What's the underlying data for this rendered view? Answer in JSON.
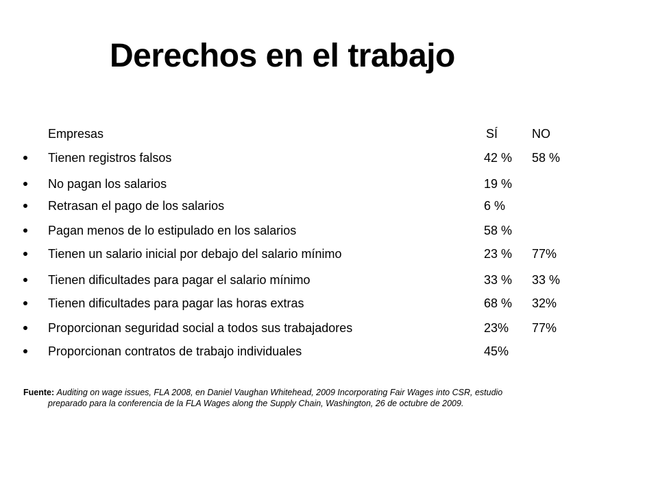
{
  "title": "Derechos en el trabajo",
  "header": {
    "label": "Empresas",
    "si": "SÍ",
    "no": "NO"
  },
  "rows": [
    {
      "label": "Tienen registros falsos",
      "si": "42 %",
      "no": "58 %"
    },
    {
      "label": "No pagan los salarios",
      "si": "19 %",
      "no": ""
    },
    {
      "label": "Retrasan el pago de los salarios",
      "si": "6 %",
      "no": ""
    },
    {
      "label": "Pagan menos de lo estipulado en los salarios",
      "si": "58 %",
      "no": ""
    },
    {
      "label": "Tienen un salario inicial por debajo del salario mínimo",
      "si": "23 %",
      "no": "77%"
    },
    {
      "label": "Tienen dificultades para pagar el salario mínimo",
      "si": "33 %",
      "no": "33 %"
    },
    {
      "label": "Tienen dificultades para pagar las horas extras",
      "si": "68 %",
      "no": "32%"
    },
    {
      "label": "Proporcionan seguridad social a todos sus trabajadores",
      "si": "23%",
      "no": "77%"
    },
    {
      "label": "Proporcionan contratos de trabajo individuales",
      "si": "45%",
      "no": ""
    }
  ],
  "source": {
    "label": "Fuente:",
    "line1": "Auditing on wage issues, FLA 2008, en Daniel Vaughan Whitehead,  2009 Incorporating Fair Wages into CSR, estudio",
    "line2": "preparado para la conferencia de la FLA Wages along the Supply Chain, Washington, 26 de octubre de 2009."
  }
}
